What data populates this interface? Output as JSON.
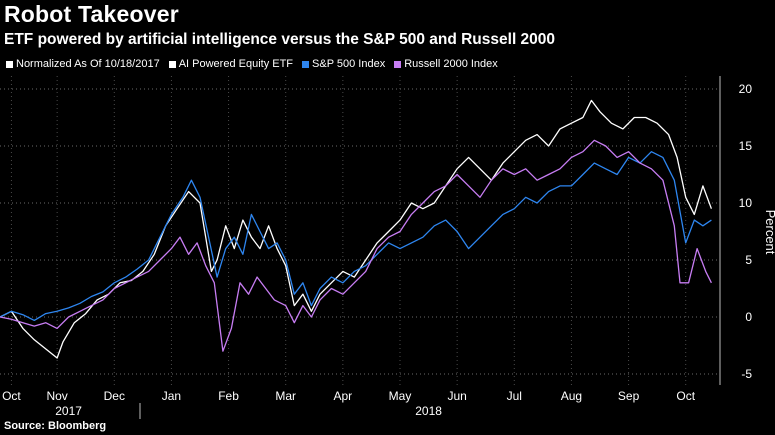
{
  "chart_data": {
    "type": "line",
    "title": "Robot Takeover",
    "subtitle": "ETF powered by artificial intelligence versus the S&P 500 and Russell 2000",
    "note": "Normalized As Of 10/18/2017",
    "ylabel": "Percent",
    "ylim": [
      -5,
      21
    ],
    "yticks": [
      -5,
      0,
      5,
      10,
      15,
      20
    ],
    "y_axis_side": "right",
    "grid": "dotted",
    "legend_position": "top-left",
    "xlim": [
      0,
      12.6
    ],
    "x_month_ticks": [
      {
        "label": "Oct",
        "x": 0.2
      },
      {
        "label": "Nov",
        "x": 1.0
      },
      {
        "label": "Dec",
        "x": 2.0
      },
      {
        "label": "Jan",
        "x": 3.0
      },
      {
        "label": "Feb",
        "x": 4.0
      },
      {
        "label": "Mar",
        "x": 5.0
      },
      {
        "label": "Apr",
        "x": 6.0
      },
      {
        "label": "May",
        "x": 7.0
      },
      {
        "label": "Jun",
        "x": 8.0
      },
      {
        "label": "Jul",
        "x": 9.0
      },
      {
        "label": "Aug",
        "x": 10.0
      },
      {
        "label": "Sep",
        "x": 11.0
      },
      {
        "label": "Oct",
        "x": 12.0
      }
    ],
    "year_labels": [
      {
        "label": "2017",
        "x": 1.2
      },
      {
        "label": "2018",
        "x": 7.5
      }
    ],
    "year_divider_x": 2.45,
    "source": "Source: Bloomberg",
    "series": [
      {
        "name": "AI Powered Equity ETF",
        "color": "#ffffff",
        "points": [
          [
            0,
            0
          ],
          [
            0.2,
            0.5
          ],
          [
            0.4,
            -1
          ],
          [
            0.6,
            -2
          ],
          [
            0.8,
            -2.8
          ],
          [
            1.0,
            -3.6
          ],
          [
            1.1,
            -2.2
          ],
          [
            1.3,
            -0.5
          ],
          [
            1.5,
            0.3
          ],
          [
            1.7,
            1.5
          ],
          [
            1.9,
            2
          ],
          [
            2.1,
            3
          ],
          [
            2.3,
            3.2
          ],
          [
            2.5,
            4
          ],
          [
            2.7,
            5.5
          ],
          [
            2.9,
            8
          ],
          [
            3.1,
            9.5
          ],
          [
            3.3,
            11
          ],
          [
            3.5,
            10
          ],
          [
            3.6,
            7
          ],
          [
            3.7,
            4
          ],
          [
            3.8,
            5
          ],
          [
            3.95,
            8
          ],
          [
            4.1,
            6
          ],
          [
            4.25,
            8.5
          ],
          [
            4.4,
            7
          ],
          [
            4.55,
            6
          ],
          [
            4.7,
            8
          ],
          [
            4.85,
            6
          ],
          [
            5.0,
            4.5
          ],
          [
            5.15,
            1
          ],
          [
            5.3,
            2
          ],
          [
            5.45,
            0.5
          ],
          [
            5.6,
            2
          ],
          [
            5.8,
            3
          ],
          [
            6.0,
            4
          ],
          [
            6.2,
            3.5
          ],
          [
            6.4,
            5
          ],
          [
            6.6,
            6.5
          ],
          [
            6.8,
            7.5
          ],
          [
            7.0,
            8.5
          ],
          [
            7.2,
            10
          ],
          [
            7.4,
            9.5
          ],
          [
            7.6,
            10
          ],
          [
            7.8,
            11.5
          ],
          [
            8.0,
            13
          ],
          [
            8.2,
            14
          ],
          [
            8.4,
            13
          ],
          [
            8.6,
            12
          ],
          [
            8.8,
            13.5
          ],
          [
            9.0,
            14.5
          ],
          [
            9.2,
            15.5
          ],
          [
            9.4,
            16
          ],
          [
            9.6,
            15
          ],
          [
            9.8,
            16.5
          ],
          [
            10.0,
            17
          ],
          [
            10.2,
            17.5
          ],
          [
            10.35,
            19
          ],
          [
            10.5,
            18
          ],
          [
            10.7,
            17
          ],
          [
            10.9,
            16.5
          ],
          [
            11.1,
            17.5
          ],
          [
            11.3,
            17.5
          ],
          [
            11.5,
            17
          ],
          [
            11.7,
            16
          ],
          [
            11.85,
            14
          ],
          [
            12.0,
            10.5
          ],
          [
            12.15,
            9
          ],
          [
            12.3,
            11.5
          ],
          [
            12.45,
            9.5
          ]
        ]
      },
      {
        "name": "S&P 500 Index",
        "color": "#2e86f0",
        "points": [
          [
            0,
            0
          ],
          [
            0.2,
            0.5
          ],
          [
            0.4,
            0.2
          ],
          [
            0.6,
            -0.3
          ],
          [
            0.8,
            0.3
          ],
          [
            1.0,
            0.5
          ],
          [
            1.2,
            0.8
          ],
          [
            1.4,
            1.2
          ],
          [
            1.6,
            1.8
          ],
          [
            1.8,
            2.2
          ],
          [
            2.0,
            3
          ],
          [
            2.2,
            3.5
          ],
          [
            2.4,
            4.2
          ],
          [
            2.6,
            5
          ],
          [
            2.8,
            7
          ],
          [
            3.0,
            9
          ],
          [
            3.2,
            10.5
          ],
          [
            3.35,
            12
          ],
          [
            3.5,
            10.5
          ],
          [
            3.65,
            7
          ],
          [
            3.8,
            3.5
          ],
          [
            3.95,
            6
          ],
          [
            4.1,
            7
          ],
          [
            4.25,
            5.5
          ],
          [
            4.4,
            9
          ],
          [
            4.55,
            7.5
          ],
          [
            4.7,
            6
          ],
          [
            4.85,
            6.5
          ],
          [
            5.0,
            5
          ],
          [
            5.15,
            2
          ],
          [
            5.3,
            3
          ],
          [
            5.45,
            1
          ],
          [
            5.6,
            2.5
          ],
          [
            5.8,
            3.5
          ],
          [
            6.0,
            3
          ],
          [
            6.2,
            4
          ],
          [
            6.4,
            4.5
          ],
          [
            6.6,
            5.5
          ],
          [
            6.8,
            6.5
          ],
          [
            7.0,
            6
          ],
          [
            7.2,
            6.5
          ],
          [
            7.4,
            7
          ],
          [
            7.6,
            8
          ],
          [
            7.8,
            8.5
          ],
          [
            8.0,
            7.5
          ],
          [
            8.2,
            6
          ],
          [
            8.4,
            7
          ],
          [
            8.6,
            8
          ],
          [
            8.8,
            9
          ],
          [
            9.0,
            9.5
          ],
          [
            9.2,
            10.5
          ],
          [
            9.4,
            10
          ],
          [
            9.6,
            11
          ],
          [
            9.8,
            11.5
          ],
          [
            10.0,
            11.5
          ],
          [
            10.2,
            12.5
          ],
          [
            10.4,
            13.5
          ],
          [
            10.6,
            13
          ],
          [
            10.8,
            12.5
          ],
          [
            11.0,
            14
          ],
          [
            11.2,
            13.5
          ],
          [
            11.4,
            14.5
          ],
          [
            11.6,
            14
          ],
          [
            11.8,
            12
          ],
          [
            12.0,
            6.5
          ],
          [
            12.15,
            8.5
          ],
          [
            12.3,
            8
          ],
          [
            12.45,
            8.5
          ]
        ]
      },
      {
        "name": "Russell 2000 Index",
        "color": "#c77df3",
        "points": [
          [
            0,
            0
          ],
          [
            0.2,
            -0.2
          ],
          [
            0.4,
            -0.5
          ],
          [
            0.6,
            -0.8
          ],
          [
            0.8,
            -0.5
          ],
          [
            1.0,
            -1
          ],
          [
            1.2,
            0
          ],
          [
            1.4,
            0.5
          ],
          [
            1.6,
            1
          ],
          [
            1.8,
            1.5
          ],
          [
            2.0,
            2.5
          ],
          [
            2.2,
            3
          ],
          [
            2.4,
            3.5
          ],
          [
            2.6,
            4
          ],
          [
            2.8,
            5
          ],
          [
            3.0,
            6
          ],
          [
            3.15,
            7
          ],
          [
            3.3,
            5.5
          ],
          [
            3.45,
            6.5
          ],
          [
            3.6,
            4.5
          ],
          [
            3.75,
            3
          ],
          [
            3.9,
            -3
          ],
          [
            4.05,
            -1
          ],
          [
            4.2,
            3
          ],
          [
            4.35,
            2
          ],
          [
            4.5,
            3.5
          ],
          [
            4.65,
            2.5
          ],
          [
            4.8,
            1.5
          ],
          [
            5.0,
            1
          ],
          [
            5.15,
            -0.5
          ],
          [
            5.3,
            1
          ],
          [
            5.45,
            0
          ],
          [
            5.6,
            1.5
          ],
          [
            5.8,
            2.5
          ],
          [
            6.0,
            2
          ],
          [
            6.2,
            3
          ],
          [
            6.4,
            4
          ],
          [
            6.6,
            6
          ],
          [
            6.8,
            7
          ],
          [
            7.0,
            7.5
          ],
          [
            7.2,
            9
          ],
          [
            7.4,
            10
          ],
          [
            7.6,
            11
          ],
          [
            7.8,
            11.5
          ],
          [
            8.0,
            12.5
          ],
          [
            8.2,
            11.5
          ],
          [
            8.4,
            10.5
          ],
          [
            8.6,
            12
          ],
          [
            8.8,
            13
          ],
          [
            9.0,
            12.5
          ],
          [
            9.2,
            13
          ],
          [
            9.4,
            12
          ],
          [
            9.6,
            12.5
          ],
          [
            9.8,
            13
          ],
          [
            10.0,
            14
          ],
          [
            10.2,
            14.5
          ],
          [
            10.4,
            15.5
          ],
          [
            10.6,
            15
          ],
          [
            10.8,
            14
          ],
          [
            11.0,
            14.5
          ],
          [
            11.2,
            13.5
          ],
          [
            11.4,
            13
          ],
          [
            11.6,
            12
          ],
          [
            11.8,
            8
          ],
          [
            11.9,
            3
          ],
          [
            12.05,
            3
          ],
          [
            12.2,
            6
          ],
          [
            12.35,
            4
          ],
          [
            12.45,
            3
          ]
        ]
      }
    ]
  }
}
